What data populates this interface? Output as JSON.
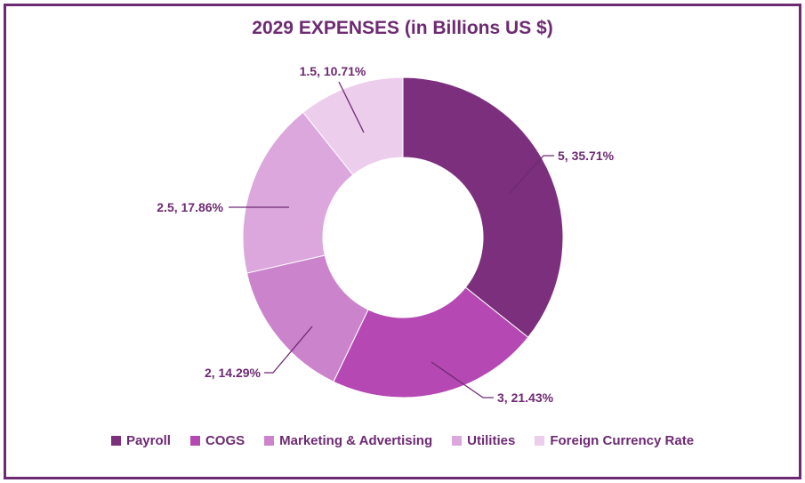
{
  "chart_data": {
    "type": "pie",
    "title": "2029 EXPENSES (in Billions US $)",
    "donut": true,
    "legend_position": "bottom",
    "categories": [
      "Payroll",
      "COGS",
      "Marketing & Advertising",
      "Utilities",
      "Foreign Currency Rate"
    ],
    "values": [
      5,
      3,
      2,
      2.5,
      1.5
    ],
    "percents": [
      "35.71%",
      "21.43%",
      "14.29%",
      "17.86%",
      "10.71%"
    ],
    "data_labels": [
      "5, 35.71%",
      "3, 21.43%",
      "2, 14.29%",
      "2.5, 17.86%",
      "1.5, 10.71%"
    ],
    "colors": [
      "#7b2f7d",
      "#b548b3",
      "#cb84cc",
      "#dba7dd",
      "#eccdec"
    ]
  }
}
